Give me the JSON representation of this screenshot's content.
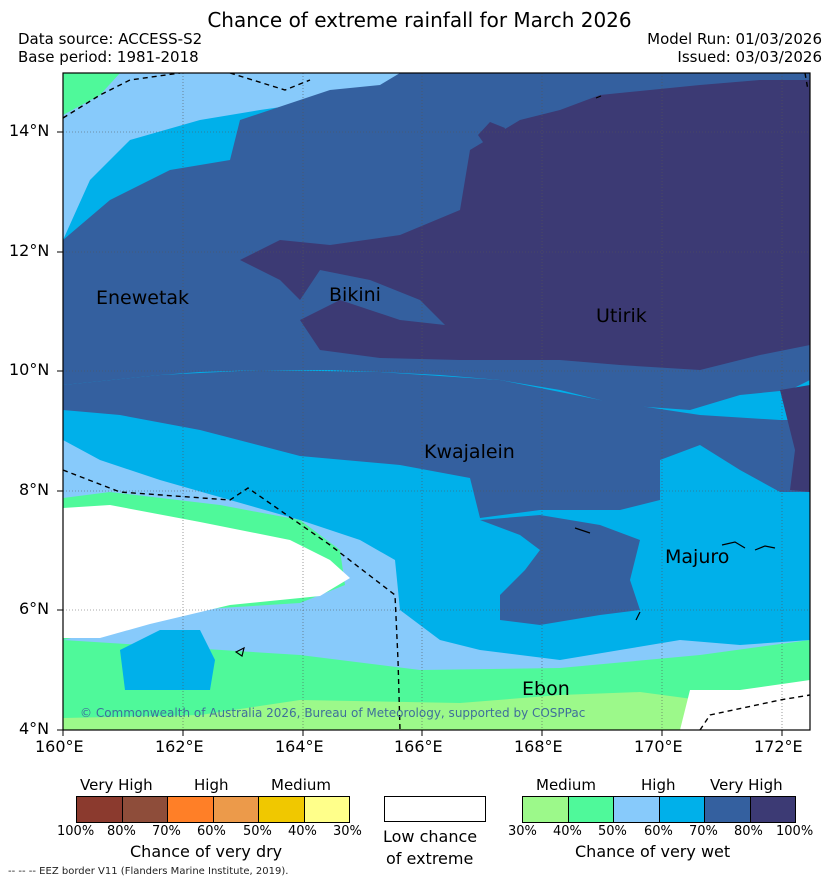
{
  "header": {
    "title": "Chance of extreme rainfall for March 2026",
    "data_source": "Data source: ACCESS-S2",
    "base_period": "Base period: 1981-2018",
    "model_run": "Model Run: 01/03/2026",
    "issued": "Issued: 03/03/2026"
  },
  "map": {
    "lat_ticks": [
      "14°N",
      "12°N",
      "10°N",
      "8°N",
      "6°N",
      "4°N"
    ],
    "lon_ticks": [
      "160°E",
      "162°E",
      "164°E",
      "166°E",
      "168°E",
      "170°E",
      "172°E"
    ],
    "places": {
      "enewetak": "Enewetak",
      "bikini": "Bikini",
      "utirik": "Utirik",
      "kwajalein": "Kwajalein",
      "majuro": "Majuro",
      "ebon": "Ebon"
    },
    "copyright": "© Commonwealth of Australia 2026, Bureau of Meteorology, supported by COSPPac"
  },
  "legend": {
    "dry": {
      "categories": [
        "Very High",
        "High",
        "Medium"
      ],
      "percents": [
        "100%",
        "80%",
        "70%",
        "60%",
        "50%",
        "40%",
        "30%"
      ],
      "colors": [
        "#8b3a2e",
        "#8e4d3a",
        "#ff7f27",
        "#ec9a4a",
        "#f0c800",
        "#ffff8a"
      ],
      "title": "Chance of very dry"
    },
    "low": {
      "title_line1": "Low chance",
      "title_line2": "of extreme",
      "color": "#ffffff"
    },
    "wet": {
      "categories": [
        "Medium",
        "High",
        "Very High"
      ],
      "percents": [
        "30%",
        "40%",
        "50%",
        "60%",
        "70%",
        "80%",
        "100%"
      ],
      "colors": [
        "#9cf98a",
        "#4ff99a",
        "#87cafb",
        "#00b0ea",
        "#34609f",
        "#3c3a74"
      ],
      "title": "Chance of very wet"
    },
    "eez_note": "-- -- -- EEZ border V11 (Flanders Marine Institute, 2019)."
  }
}
